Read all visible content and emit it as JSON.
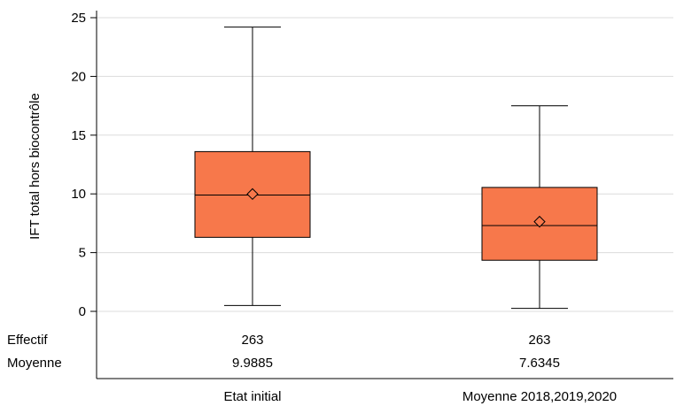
{
  "chart_data": {
    "type": "boxplot",
    "ylabel": "IFT total hors biocontrôle",
    "ylim": [
      0,
      25
    ],
    "yticks": [
      0,
      5,
      10,
      15,
      20,
      25
    ],
    "grid": true,
    "box_color": "#F7784B",
    "categories": [
      "Etat initial",
      "Moyenne 2018,2019,2020"
    ],
    "boxes": [
      {
        "category": "Etat initial",
        "min": 0.5,
        "q1": 6.3,
        "median": 9.9,
        "q3": 13.6,
        "max": 24.2,
        "mean": 9.9885
      },
      {
        "category": "Moyenne 2018,2019,2020",
        "min": 0.25,
        "q1": 4.35,
        "median": 7.3,
        "q3": 10.55,
        "max": 17.5,
        "mean": 7.6345
      }
    ],
    "stats_rows": [
      {
        "label": "Effectif",
        "values": [
          "263",
          "263"
        ]
      },
      {
        "label": "Moyenne",
        "values": [
          "9.9885",
          "7.6345"
        ]
      }
    ]
  }
}
